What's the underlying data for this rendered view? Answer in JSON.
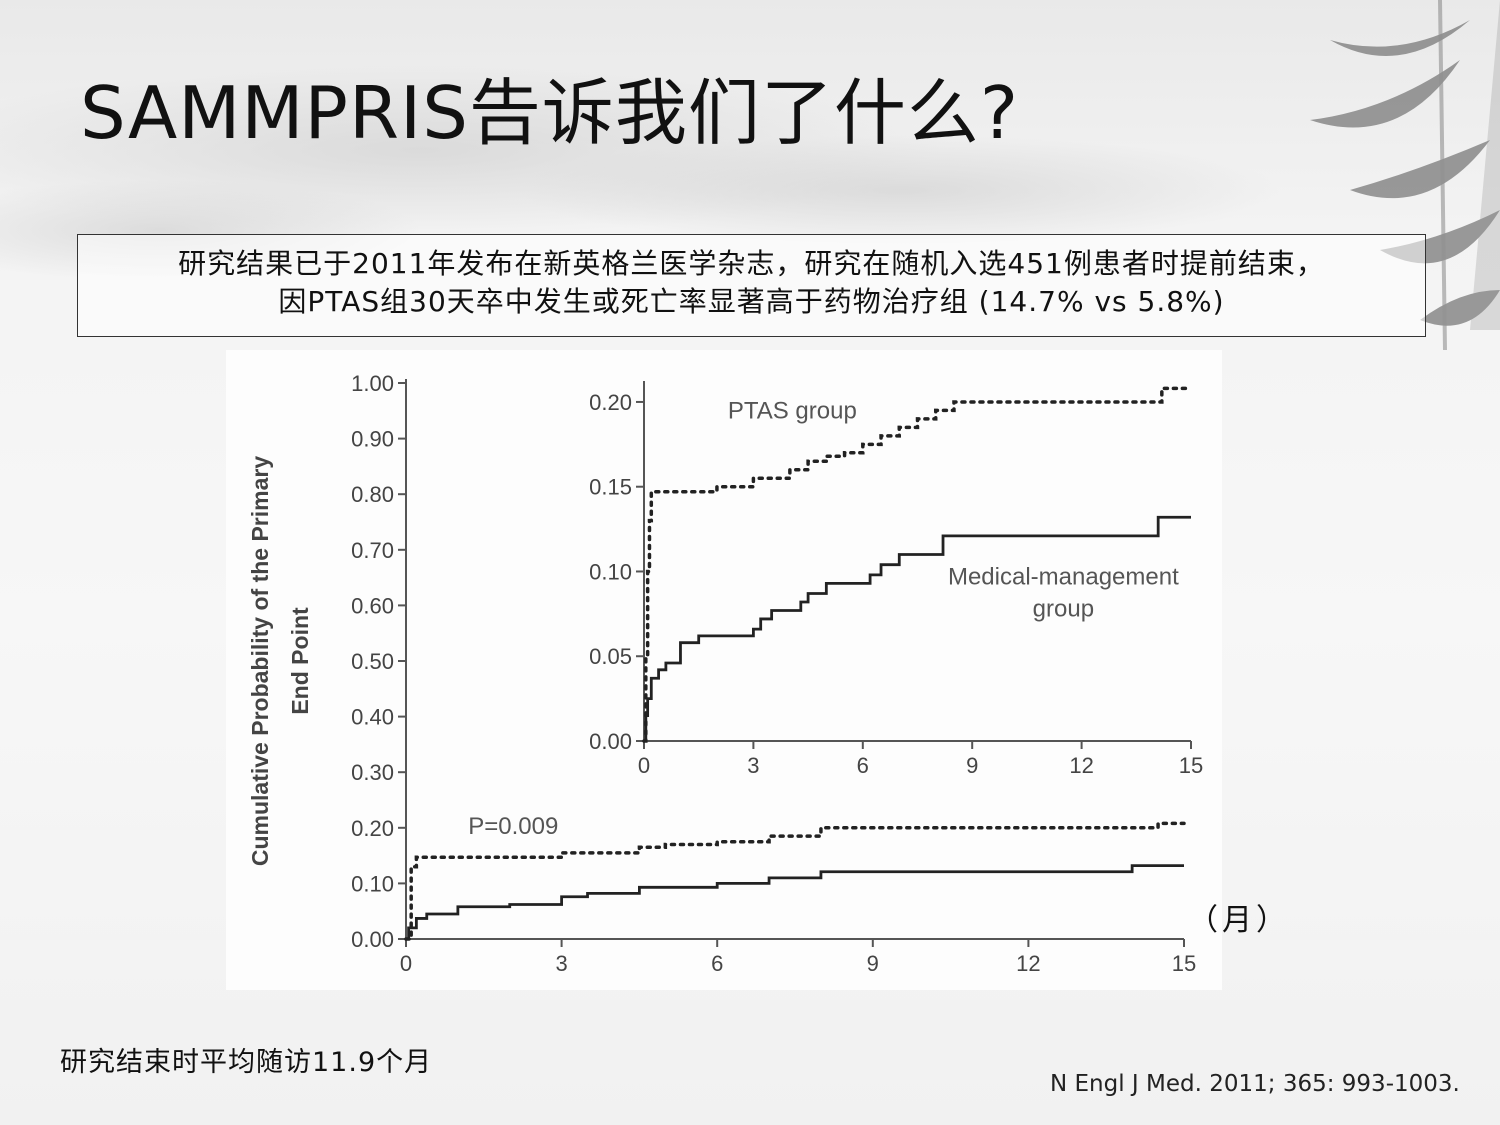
{
  "slide": {
    "title": "SAMMPRIS告诉我们了什么?",
    "summary_line1": "研究结果已于2011年发布在新英格兰医学杂志，研究在随机入选451例患者时提前结束，",
    "summary_line2": "因PTAS组30天卒中发生或死亡率显著高于药物治疗组 (14.7% vs 5.8%)",
    "month_unit": "（月）",
    "followup_note": "研究结束时平均随访11.9个月",
    "citation": "N Engl J Med. 2011; 365: 993-1003."
  },
  "chart_data": [
    {
      "type": "line",
      "ylabel_line1": "Cumulative Probability of the Primary",
      "ylabel_line2": "End Point",
      "xlabel": "",
      "xlim": [
        0,
        15
      ],
      "ylim": [
        0,
        1.0
      ],
      "xticks": [
        "0",
        "3",
        "6",
        "9",
        "12",
        "15"
      ],
      "yticks": [
        "0.00",
        "0.10",
        "0.20",
        "0.30",
        "0.40",
        "0.50",
        "0.60",
        "0.70",
        "0.80",
        "0.90",
        "1.00"
      ],
      "annotation": "P=0.009",
      "series": [
        {
          "style": "dotted",
          "x": [
            0,
            0.1,
            0.2,
            1.5,
            3.0,
            4.5,
            5.0,
            6.0,
            7.0,
            8.0,
            10.0,
            12.0,
            14.0,
            14.5,
            15.0
          ],
          "y": [
            0,
            0.13,
            0.147,
            0.147,
            0.155,
            0.165,
            0.17,
            0.175,
            0.185,
            0.2,
            0.2,
            0.2,
            0.2,
            0.208,
            0.208
          ]
        },
        {
          "style": "solid",
          "x": [
            0,
            0.05,
            0.2,
            0.4,
            1.0,
            2.0,
            3.0,
            3.5,
            4.5,
            6.0,
            7.0,
            8.0,
            10.0,
            12.0,
            14.0,
            15.0
          ],
          "y": [
            0,
            0.02,
            0.037,
            0.045,
            0.058,
            0.062,
            0.076,
            0.082,
            0.093,
            0.1,
            0.11,
            0.121,
            0.121,
            0.121,
            0.132,
            0.132
          ]
        }
      ]
    },
    {
      "type": "line",
      "xlim": [
        0,
        15
      ],
      "ylim": [
        0,
        0.21
      ],
      "xticks": [
        "0",
        "3",
        "6",
        "9",
        "12",
        "15"
      ],
      "yticks": [
        "0.00",
        "0.05",
        "0.10",
        "0.15",
        "0.20"
      ],
      "series": [
        {
          "name": "PTAS group",
          "style": "dotted",
          "x": [
            0,
            0.05,
            0.1,
            0.15,
            0.2,
            1.5,
            2.0,
            3.0,
            4.0,
            4.5,
            5.0,
            5.5,
            6.0,
            6.5,
            7.0,
            7.5,
            8.0,
            8.5,
            10.0,
            12.0,
            14.0,
            14.2,
            15.0
          ],
          "y": [
            0,
            0.05,
            0.1,
            0.13,
            0.147,
            0.147,
            0.15,
            0.155,
            0.16,
            0.165,
            0.168,
            0.17,
            0.175,
            0.18,
            0.185,
            0.19,
            0.195,
            0.2,
            0.2,
            0.2,
            0.2,
            0.208,
            0.208
          ]
        },
        {
          "name": "Medical-management group",
          "style": "solid",
          "x": [
            0,
            0.05,
            0.1,
            0.2,
            0.4,
            0.6,
            1.0,
            1.5,
            2.0,
            3.0,
            3.2,
            3.5,
            4.0,
            4.3,
            4.5,
            5.0,
            6.0,
            6.2,
            6.5,
            7.0,
            8.0,
            8.2,
            10.0,
            12.0,
            14.0,
            14.1,
            15.0
          ],
          "y": [
            0,
            0.015,
            0.025,
            0.037,
            0.042,
            0.046,
            0.058,
            0.062,
            0.062,
            0.066,
            0.072,
            0.077,
            0.077,
            0.082,
            0.087,
            0.093,
            0.093,
            0.098,
            0.104,
            0.11,
            0.11,
            0.121,
            0.121,
            0.121,
            0.121,
            0.132,
            0.132
          ]
        }
      ]
    }
  ]
}
